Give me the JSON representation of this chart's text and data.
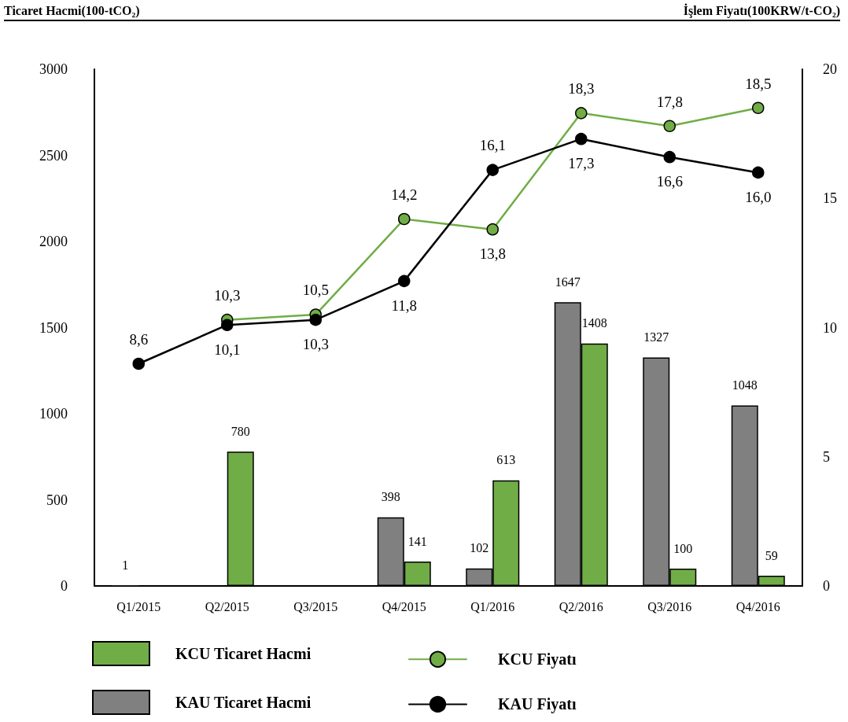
{
  "chart_data": {
    "type": "bar",
    "ylabel": "Ticaret Hacmi(100-tCO₂)",
    "y2label": "İşlem Fiyatı(100KRW/t-CO₂)",
    "categories": [
      "Q1/2015",
      "Q2/2015",
      "Q3/2015",
      "Q4/2015",
      "Q1/2016",
      "Q2/2016",
      "Q3/2016",
      "Q4/2016"
    ],
    "series": [
      {
        "name": "KCU Ticaret Hacmi",
        "color": "#70ad47",
        "values": [
          null,
          780,
          null,
          141,
          613,
          1408,
          100,
          59
        ],
        "value_labels": [
          null,
          "780",
          null,
          "141",
          "613",
          "1408",
          "100",
          "59"
        ]
      },
      {
        "name": "KAU Ticaret Hacmi",
        "color": "#808080",
        "values": [
          1,
          null,
          null,
          398,
          102,
          1647,
          1327,
          1048
        ],
        "value_labels": [
          "1",
          null,
          null,
          "398",
          "102",
          "1647",
          "1327",
          "1048"
        ]
      },
      {
        "name": "KCU Fiyatı",
        "type": "line",
        "axis": "y2",
        "color": "#70ad47",
        "values": [
          null,
          10.3,
          10.5,
          14.2,
          13.8,
          18.3,
          17.8,
          18.5
        ],
        "value_labels": [
          null,
          "10,3",
          "10,5",
          "14,2",
          "13,8",
          "18,3",
          "17,8",
          "18,5"
        ]
      },
      {
        "name": "KAU Fiyatı",
        "type": "line",
        "axis": "y2",
        "color": "#000000",
        "values": [
          8.6,
          10.1,
          10.3,
          11.8,
          16.1,
          17.3,
          16.6,
          16.0
        ],
        "value_labels": [
          "8,6",
          "10,1",
          "10,3",
          "11,8",
          "16,1",
          "17,3",
          "16,6",
          "16,0"
        ]
      }
    ],
    "ylim": [
      0,
      3000
    ],
    "yticks": [
      0,
      500,
      1000,
      1500,
      2000,
      2500,
      3000
    ],
    "y2lim": [
      0,
      20
    ],
    "y2ticks": [
      0,
      5,
      10,
      15,
      20
    ],
    "grid": false,
    "legend": "bottom",
    "marker": "circle",
    "line_style": "solid"
  }
}
